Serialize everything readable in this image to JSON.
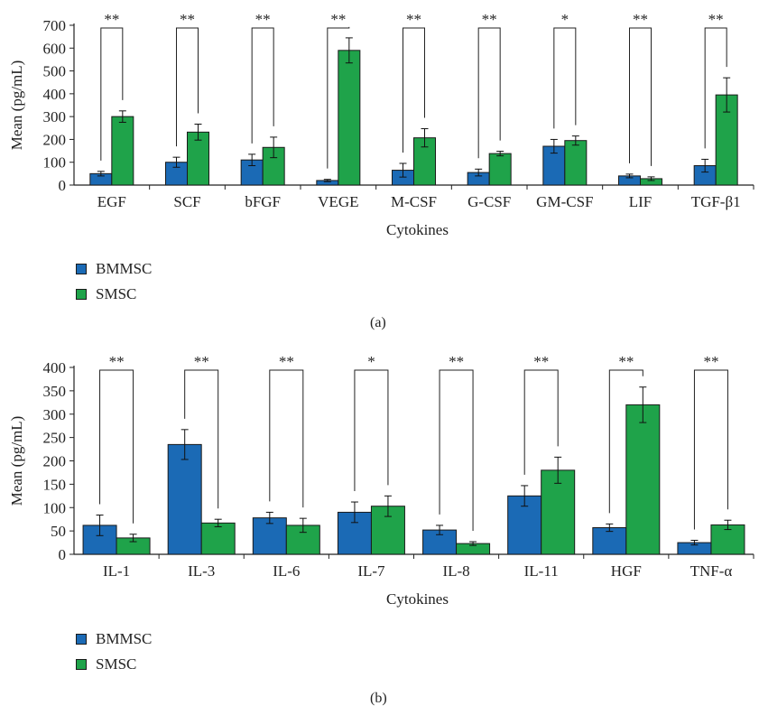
{
  "colors": {
    "BMMSC": "#1b6ab5",
    "SMSC": "#1fa34a",
    "axis": "#222222"
  },
  "chart_data": [
    {
      "type": "bar",
      "panel_label": "(a)",
      "xlabel": "Cytokines",
      "ylabel": "Mean (pg/mL)",
      "ylim": [
        0,
        700
      ],
      "yticks": [
        "0",
        "100",
        "200",
        "300",
        "400",
        "500",
        "600",
        "700"
      ],
      "categories": [
        "EGF",
        "SCF",
        "bFGF",
        "VEGE",
        "M-CSF",
        "G-CSF",
        "GM-CSF",
        "LIF",
        "TGF-β1"
      ],
      "series": [
        {
          "name": "BMMSC",
          "values": [
            50,
            100,
            110,
            20,
            65,
            55,
            170,
            40,
            85
          ],
          "errors": [
            10,
            22,
            25,
            5,
            30,
            15,
            30,
            8,
            28
          ]
        },
        {
          "name": "SMSC",
          "values": [
            300,
            232,
            165,
            590,
            207,
            138,
            195,
            28,
            395
          ],
          "errors": [
            25,
            35,
            45,
            55,
            40,
            10,
            20,
            8,
            75
          ]
        }
      ],
      "significance": [
        "**",
        "**",
        "**",
        "**",
        "**",
        "**",
        "*",
        "**",
        "**"
      ],
      "legend": [
        "BMMSC",
        "SMSC"
      ]
    },
    {
      "type": "bar",
      "panel_label": "(b)",
      "xlabel": "Cytokines",
      "ylabel": "Mean (pg/mL)",
      "ylim": [
        0,
        400
      ],
      "yticks": [
        "0",
        "50",
        "100",
        "150",
        "200",
        "250",
        "300",
        "350",
        "400"
      ],
      "categories": [
        "IL-1",
        "IL-3",
        "IL-6",
        "IL-7",
        "IL-8",
        "IL-11",
        "HGF",
        "TNF-α"
      ],
      "series": [
        {
          "name": "BMMSC",
          "values": [
            62,
            235,
            78,
            90,
            52,
            125,
            57,
            25
          ],
          "errors": [
            22,
            32,
            12,
            22,
            10,
            22,
            8,
            5
          ]
        },
        {
          "name": "SMSC",
          "values": [
            35,
            67,
            62,
            103,
            23,
            180,
            320,
            63
          ],
          "errors": [
            8,
            8,
            15,
            22,
            4,
            28,
            38,
            10
          ]
        }
      ],
      "significance": [
        "**",
        "**",
        "**",
        "*",
        "**",
        "**",
        "**",
        "**"
      ],
      "legend": [
        "BMMSC",
        "SMSC"
      ]
    }
  ]
}
